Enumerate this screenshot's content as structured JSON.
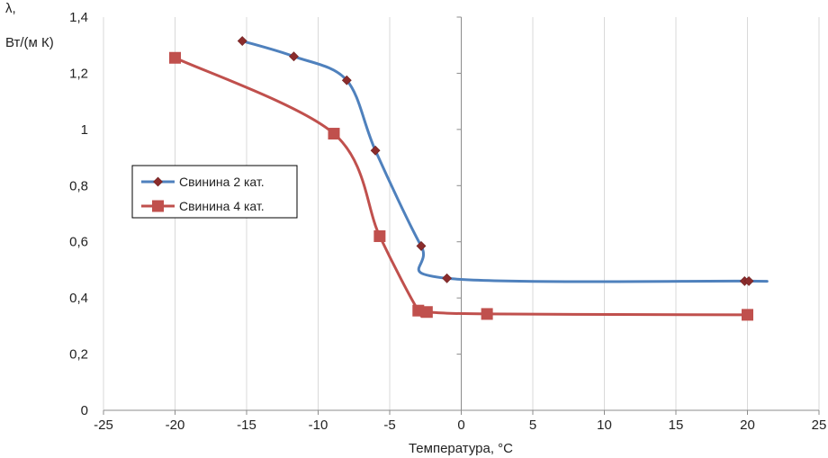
{
  "chart_data": {
    "type": "line",
    "title": "",
    "xlabel": "Температура, °С",
    "ylabel": [
      "λ,",
      "Вт/(м К)"
    ],
    "xlim": [
      -25,
      25
    ],
    "ylim": [
      0,
      1.4
    ],
    "xticks": [
      -25,
      -20,
      -15,
      -10,
      -5,
      0,
      5,
      10,
      15,
      20,
      25
    ],
    "yticks": [
      0,
      0.2,
      0.4,
      0.6,
      0.8,
      1,
      1.2,
      1.4
    ],
    "xtick_labels": [
      "-25",
      "-20",
      "-15",
      "-10",
      "-5",
      "0",
      "5",
      "10",
      "15",
      "20",
      "25"
    ],
    "ytick_labels": [
      "0",
      "0,2",
      "0,4",
      "0,6",
      "0,8",
      "1",
      "1,2",
      "1,4"
    ],
    "grid": "vertical",
    "legend_position": "left-middle",
    "series": [
      {
        "name": "Свинина 2 кат.",
        "marker": "diamond",
        "line_color": "#4f81bd",
        "marker_color": "#8b2c2c",
        "x": [
          -15.3,
          -11.7,
          -8.0,
          -6.0,
          -2.8,
          -1.0,
          19.8,
          20.1
        ],
        "y": [
          1.315,
          1.26,
          1.175,
          0.925,
          0.585,
          0.47,
          0.46,
          0.46
        ]
      },
      {
        "name": "Свинина 4 кат.",
        "marker": "square",
        "line_color": "#c0504d",
        "marker_color": "#c0504d",
        "x": [
          -20,
          -8.9,
          -5.7,
          -3.0,
          -2.4,
          1.8,
          20
        ],
        "y": [
          1.255,
          0.985,
          0.62,
          0.355,
          0.35,
          0.343,
          0.34
        ]
      }
    ]
  }
}
